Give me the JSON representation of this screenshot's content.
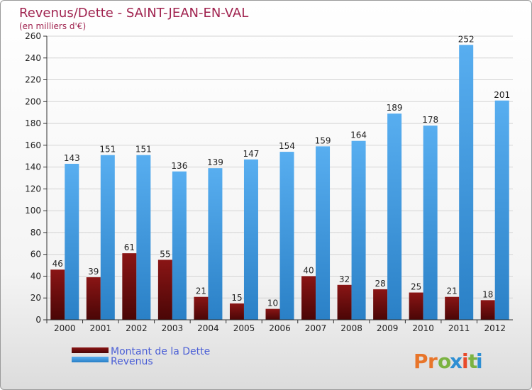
{
  "chart_data": {
    "type": "bar",
    "title": "Revenus/Dette - SAINT-JEAN-EN-VAL",
    "subtitle": "(en milliers d'€)",
    "categories": [
      "2000",
      "2001",
      "2002",
      "2003",
      "2004",
      "2005",
      "2006",
      "2007",
      "2008",
      "2009",
      "2010",
      "2011",
      "2012"
    ],
    "series": [
      {
        "name": "Montant de la Dette",
        "values": [
          46,
          39,
          61,
          55,
          21,
          15,
          10,
          40,
          32,
          28,
          25,
          21,
          18
        ],
        "color": "#7a1010"
      },
      {
        "name": "Revenus",
        "values": [
          143,
          151,
          151,
          136,
          139,
          147,
          154,
          159,
          164,
          189,
          178,
          252,
          201
        ],
        "color": "#3b95dd"
      }
    ],
    "ylim": [
      0,
      260
    ],
    "yticks": [
      0,
      20,
      40,
      60,
      80,
      100,
      120,
      140,
      160,
      180,
      200,
      220,
      240,
      260
    ],
    "grid": true,
    "legend_position": "bottom-left"
  },
  "logo": {
    "letters": [
      {
        "ch": "P",
        "color": "#e8752a"
      },
      {
        "ch": "r",
        "color": "#e8752a"
      },
      {
        "ch": "o",
        "color": "#7bb342"
      },
      {
        "ch": "x",
        "color": "#2e8fd3"
      },
      {
        "ch": "i",
        "color": "#e84a2a"
      },
      {
        "ch": "t",
        "color": "#7bb342"
      },
      {
        "ch": "i",
        "color": "#2e8fd3"
      }
    ]
  }
}
